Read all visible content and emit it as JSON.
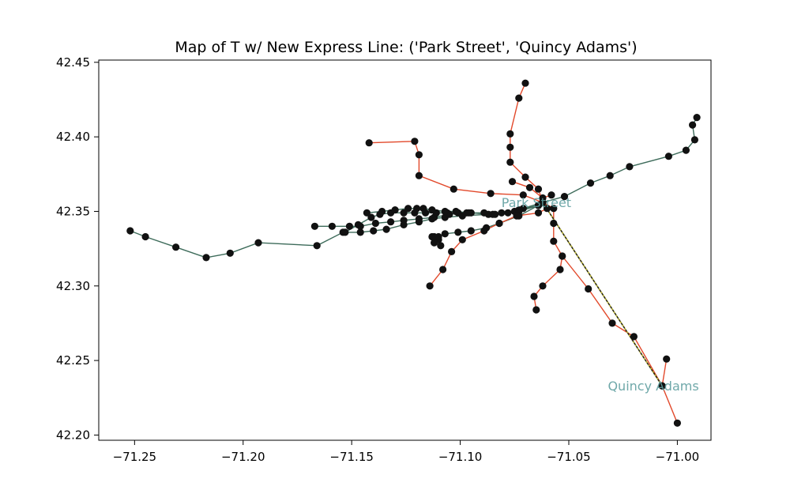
{
  "chart_data": {
    "type": "scatter",
    "title": "Map of T w/ New Express Line: ('Park Street', 'Quincy Adams')",
    "xlabel": "",
    "ylabel": "",
    "xlim": [
      -71.2665,
      -70.9845
    ],
    "ylim": [
      42.1965,
      42.4515
    ],
    "xticks": [
      -71.25,
      -71.2,
      -71.15,
      -71.1,
      -71.05,
      -71.0
    ],
    "xtick_labels": [
      "−71.25",
      "−71.20",
      "−71.15",
      "−71.10",
      "−71.05",
      "−71.00"
    ],
    "yticks": [
      42.2,
      42.25,
      42.3,
      42.35,
      42.4,
      42.45
    ],
    "ytick_labels": [
      "42.20",
      "42.25",
      "42.30",
      "42.35",
      "42.40",
      "42.45"
    ],
    "grid": false,
    "colors": {
      "red_line": "#e2492b",
      "green_line": "#3d6b5a",
      "express_line": "#2c2a10",
      "express_dots": "#c8c23a",
      "station": "#111111",
      "station_label": "#5f9ea0"
    },
    "series": [
      {
        "line": "green",
        "points": [
          [
            -71.252,
            42.337
          ],
          [
            -71.245,
            42.333
          ],
          [
            -71.231,
            42.326
          ],
          [
            -71.217,
            42.319
          ],
          [
            -71.206,
            42.322
          ],
          [
            -71.193,
            42.329
          ],
          [
            -71.166,
            42.327
          ],
          [
            -71.154,
            42.336
          ],
          [
            -71.146,
            42.336
          ],
          [
            -71.14,
            42.337
          ],
          [
            -71.134,
            42.338
          ],
          [
            -71.126,
            42.341
          ],
          [
            -71.119,
            42.343
          ],
          [
            -71.113,
            42.345
          ],
          [
            -71.107,
            42.346
          ],
          [
            -71.099,
            42.347
          ],
          [
            -71.087,
            42.348
          ],
          [
            -71.078,
            42.349
          ],
          [
            -71.071,
            42.352
          ],
          [
            -71.062,
            42.356
          ],
          [
            -71.052,
            42.36
          ],
          [
            -71.04,
            42.369
          ],
          [
            -71.031,
            42.374
          ],
          [
            -71.022,
            42.38
          ],
          [
            -71.004,
            42.387
          ],
          [
            -70.996,
            42.391
          ],
          [
            -70.992,
            42.398
          ],
          [
            -70.993,
            42.408
          ],
          [
            -70.991,
            42.413
          ]
        ]
      },
      {
        "line": "green",
        "points": [
          [
            -71.167,
            42.34
          ],
          [
            -71.159,
            42.34
          ],
          [
            -71.151,
            42.34
          ],
          [
            -71.146,
            42.34
          ],
          [
            -71.139,
            42.342
          ],
          [
            -71.132,
            42.343
          ],
          [
            -71.126,
            42.344
          ],
          [
            -71.119,
            42.345
          ],
          [
            -71.112,
            42.346
          ],
          [
            -71.105,
            42.348
          ],
          [
            -71.097,
            42.349
          ],
          [
            -71.089,
            42.349
          ],
          [
            -71.081,
            42.349
          ],
          [
            -71.073,
            42.35
          ],
          [
            -71.064,
            42.354
          ]
        ]
      },
      {
        "line": "green",
        "points": [
          [
            -71.153,
            42.336
          ],
          [
            -71.147,
            42.341
          ],
          [
            -71.141,
            42.346
          ],
          [
            -71.137,
            42.348
          ],
          [
            -71.132,
            42.349
          ],
          [
            -71.126,
            42.349
          ],
          [
            -71.121,
            42.349
          ],
          [
            -71.116,
            42.349
          ],
          [
            -71.111,
            42.349
          ],
          [
            -71.106,
            42.349
          ],
          [
            -71.101,
            42.349
          ],
          [
            -71.095,
            42.349
          ],
          [
            -71.085,
            42.348
          ],
          [
            -71.075,
            42.35
          ],
          [
            -71.064,
            42.354
          ]
        ]
      },
      {
        "line": "green",
        "points": [
          [
            -71.143,
            42.349
          ],
          [
            -71.136,
            42.35
          ],
          [
            -71.13,
            42.351
          ],
          [
            -71.124,
            42.352
          ],
          [
            -71.12,
            42.352
          ],
          [
            -71.117,
            42.352
          ],
          [
            -71.113,
            42.351
          ],
          [
            -71.107,
            42.35
          ],
          [
            -71.102,
            42.35
          ],
          [
            -71.096,
            42.349
          ],
          [
            -71.084,
            42.348
          ],
          [
            -71.073,
            42.351
          ],
          [
            -71.064,
            42.354
          ]
        ]
      },
      {
        "line": "green",
        "points": [
          [
            -71.113,
            42.333
          ],
          [
            -71.11,
            42.333
          ],
          [
            -71.107,
            42.335
          ],
          [
            -71.101,
            42.336
          ],
          [
            -71.095,
            42.337
          ],
          [
            -71.088,
            42.339
          ],
          [
            -71.082,
            42.342
          ],
          [
            -71.073,
            42.347
          ],
          [
            -71.064,
            42.354
          ]
        ]
      },
      {
        "line": "red",
        "points": [
          [
            -71.142,
            42.396
          ],
          [
            -71.121,
            42.397
          ],
          [
            -71.119,
            42.388
          ],
          [
            -71.119,
            42.374
          ],
          [
            -71.103,
            42.365
          ],
          [
            -71.086,
            42.362
          ],
          [
            -71.071,
            42.361
          ],
          [
            -71.062,
            42.356
          ],
          [
            -71.057,
            42.352
          ],
          [
            -71.057,
            42.342
          ],
          [
            -71.057,
            42.33
          ],
          [
            -71.053,
            42.32
          ],
          [
            -71.041,
            42.298
          ],
          [
            -71.03,
            42.275
          ],
          [
            -71.02,
            42.266
          ],
          [
            -71.007,
            42.233
          ],
          [
            -71.0,
            42.208
          ]
        ]
      },
      {
        "line": "red",
        "points": [
          [
            -71.053,
            42.32
          ],
          [
            -71.054,
            42.311
          ],
          [
            -71.062,
            42.3
          ],
          [
            -71.066,
            42.293
          ],
          [
            -71.065,
            42.284
          ]
        ]
      },
      {
        "line": "red",
        "points": [
          [
            -71.005,
            42.251
          ],
          [
            -71.007,
            42.233
          ]
        ]
      },
      {
        "line": "red",
        "points": [
          [
            -71.07,
            42.436
          ],
          [
            -71.073,
            42.426
          ],
          [
            -71.077,
            42.402
          ],
          [
            -71.077,
            42.393
          ],
          [
            -71.077,
            42.383
          ],
          [
            -71.07,
            42.373
          ],
          [
            -71.064,
            42.365
          ],
          [
            -71.062,
            42.356
          ],
          [
            -71.06,
            42.352
          ],
          [
            -71.064,
            42.349
          ],
          [
            -71.074,
            42.347
          ],
          [
            -71.082,
            42.342
          ],
          [
            -71.089,
            42.337
          ],
          [
            -71.099,
            42.331
          ],
          [
            -71.104,
            42.323
          ],
          [
            -71.108,
            42.311
          ],
          [
            -71.114,
            42.3
          ]
        ]
      },
      {
        "line": "red",
        "points": [
          [
            -71.058,
            42.361
          ],
          [
            -71.062,
            42.359
          ],
          [
            -71.068,
            42.366
          ],
          [
            -71.076,
            42.37
          ]
        ]
      },
      {
        "line": "red",
        "points": [
          [
            -71.112,
            42.333
          ],
          [
            -71.11,
            42.331
          ],
          [
            -71.112,
            42.329
          ],
          [
            -71.109,
            42.327
          ]
        ]
      }
    ],
    "express": {
      "from": [
        -71.062,
        42.356
      ],
      "to": [
        -71.007,
        42.233
      ]
    },
    "labels": [
      {
        "text": "Park Street",
        "x": -71.081,
        "y": 42.353
      },
      {
        "text": "Quincy Adams",
        "x": -71.032,
        "y": 42.23
      }
    ]
  }
}
